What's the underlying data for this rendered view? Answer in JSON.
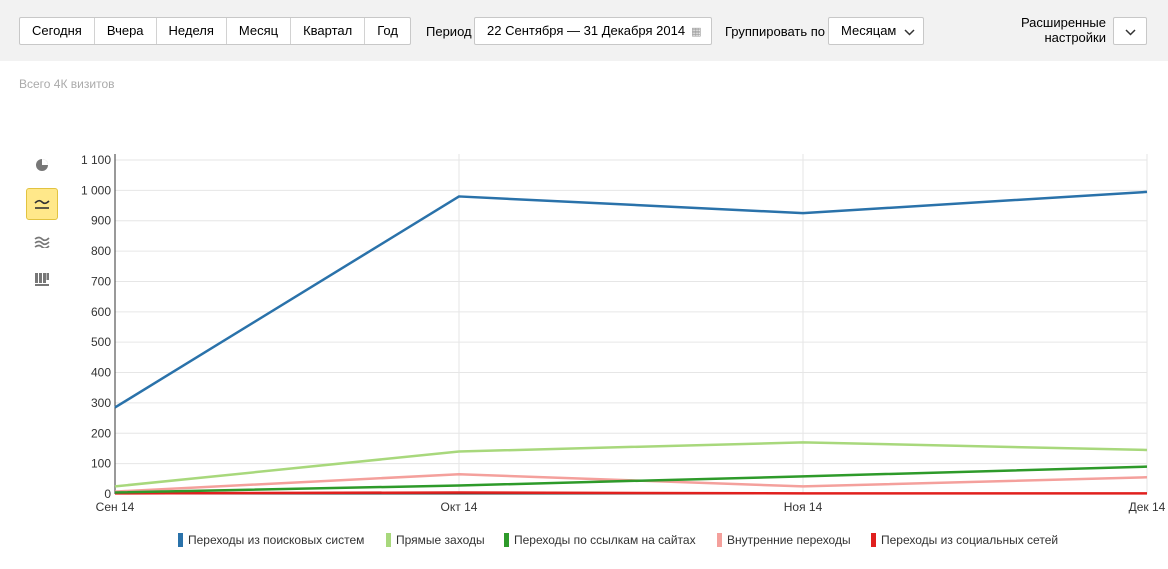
{
  "toolbar": {
    "presets": [
      "Сегодня",
      "Вчера",
      "Неделя",
      "Месяц",
      "Квартал",
      "Год"
    ],
    "period_label": "Период",
    "period_value": "22 Сентября — 31 Декабря 2014",
    "group_label": "Группировать по",
    "group_value": "Месяцам",
    "advanced_label": "Расширенные настройки"
  },
  "summary": "Всего 4К визитов",
  "side_icons": [
    "pie-chart-icon",
    "line-chart-icon",
    "area-chart-icon",
    "bar-chart-icon"
  ],
  "active_chart": "line-chart-icon",
  "chart_data": {
    "type": "line",
    "categories": [
      "Сен 14",
      "Окт 14",
      "Ноя 14",
      "Дек 14"
    ],
    "yticks": [
      0,
      100,
      200,
      300,
      400,
      500,
      600,
      700,
      800,
      900,
      1000,
      1100
    ],
    "ytick_labels": [
      "0",
      "100",
      "200",
      "300",
      "400",
      "500",
      "600",
      "700",
      "800",
      "900",
      "1 000",
      "1 100"
    ],
    "ylim": [
      0,
      1100
    ],
    "grid": true,
    "legend_position": "bottom",
    "series": [
      {
        "name": "Переходы из поисковых систем",
        "color": "#2a72aa",
        "values": [
          285,
          980,
          925,
          995
        ]
      },
      {
        "name": "Прямые заходы",
        "color": "#a8d87c",
        "values": [
          25,
          140,
          170,
          145
        ]
      },
      {
        "name": "Переходы по ссылкам на сайтах",
        "color": "#2e9a2a",
        "values": [
          5,
          28,
          58,
          90
        ]
      },
      {
        "name": "Внутренние переходы",
        "color": "#f4a09c",
        "values": [
          8,
          65,
          25,
          55
        ]
      },
      {
        "name": "Переходы из социальных сетей",
        "color": "#e0201e",
        "values": [
          2,
          5,
          2,
          2
        ]
      }
    ]
  }
}
